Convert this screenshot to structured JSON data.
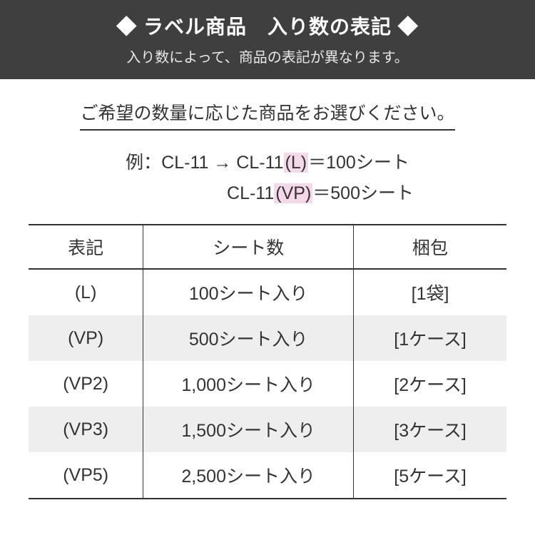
{
  "header": {
    "title": "◆ ラベル商品　入り数の表記 ◆",
    "subtitle": "入り数によって、商品の表記が異なります。"
  },
  "instruction": "ご希望の数量に応じた商品をお選びください。",
  "example": {
    "prefix": "例：CL-11 → CL-11",
    "hl1": "(L)",
    "mid1": "＝100シート",
    "line2_prefix": "CL-11",
    "hl2": "(VP)",
    "mid2": "＝500シート"
  },
  "table": {
    "columns": [
      "表記",
      "シート数",
      "梱包"
    ],
    "rows": [
      [
        "(L)",
        "100シート入り",
        "[1袋]"
      ],
      [
        "(VP)",
        "500シート入り",
        "[1ケース]"
      ],
      [
        "(VP2)",
        "1,000シート入り",
        "[2ケース]"
      ],
      [
        "(VP3)",
        "1,500シート入り",
        "[3ケース]"
      ],
      [
        "(VP5)",
        "2,500シート入り",
        "[5ケース]"
      ]
    ],
    "column_widths": [
      "24%",
      "44%",
      "32%"
    ],
    "header_bg": "#ffffff",
    "row_alt_bg": "#eeeeee",
    "border_color": "#333333",
    "font_size": 25
  },
  "colors": {
    "header_bg": "#3f3f3f",
    "header_fg": "#ffffff",
    "header_sub_fg": "#e8e8e8",
    "highlight_bg": "#f5d9eb",
    "text": "#333333",
    "page_bg": "#ffffff"
  }
}
